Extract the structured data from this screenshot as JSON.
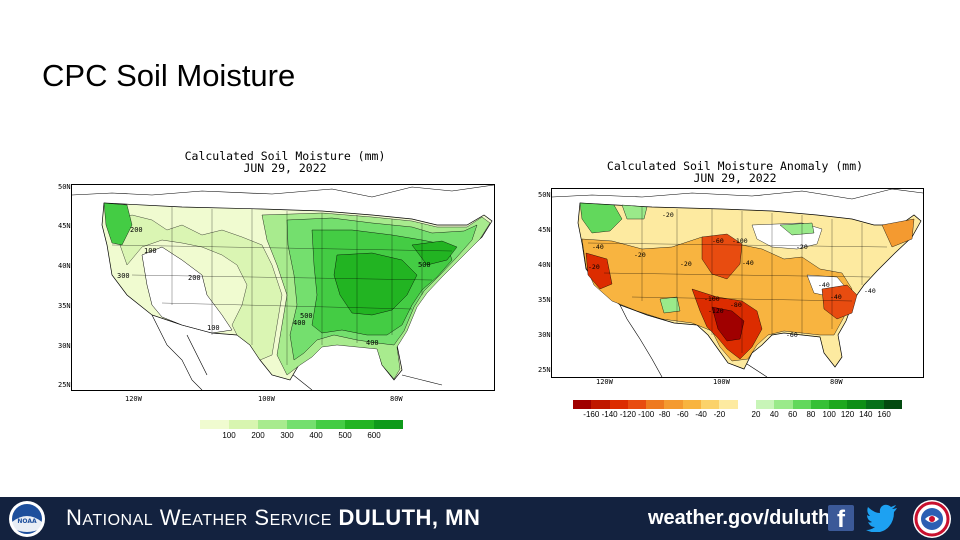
{
  "slide": {
    "title": "CPC Soil Moisture"
  },
  "left_map": {
    "title_line1": "Calculated Soil Moisture (mm)",
    "title_line2": "JUN 29, 2022",
    "lat_labels": [
      "50N",
      "45N",
      "40N",
      "35N",
      "30N",
      "25N"
    ],
    "lon_labels": [
      "120W",
      "100W",
      "80W"
    ],
    "contour_labels": [
      "200",
      "100",
      "300",
      "200",
      "100",
      "500",
      "400",
      "500",
      "400"
    ],
    "legend": {
      "colors": [
        "#f0fbd0",
        "#d8f5b0",
        "#a8eb8e",
        "#74df6e",
        "#44cc44",
        "#22b422",
        "#0e9a1a"
      ],
      "labels": [
        "100",
        "200",
        "300",
        "400",
        "500",
        "600"
      ]
    }
  },
  "right_map": {
    "title_line1": "Calculated Soil Moisture Anomaly (mm)",
    "title_line2": "JUN 29, 2022",
    "lat_labels": [
      "50N",
      "45N",
      "40N",
      "35N",
      "30N",
      "25N"
    ],
    "lon_labels": [
      "120W",
      "100W",
      "80W"
    ],
    "contour_labels": [
      "-20",
      "-40",
      "-20",
      "-60",
      "-100",
      "-40",
      "-20",
      "-100",
      "-80",
      "-120",
      "-40",
      "-20",
      "-40",
      "-60",
      "-20",
      "-40"
    ],
    "legend": {
      "colors": [
        "#a00000",
        "#c01800",
        "#dc2c00",
        "#e84c10",
        "#ee7a20",
        "#f49a30",
        "#f8b440",
        "#fbd26a",
        "#fdeaa0",
        "#ffffff",
        "#c8f5b8",
        "#9aea8a",
        "#62d85c",
        "#36c036",
        "#1ea81e",
        "#0e8e16",
        "#06701a",
        "#034a10"
      ],
      "labels": [
        "-160",
        "-140",
        "-120",
        "-100",
        "-80",
        "-60",
        "-40",
        "-20",
        "20",
        "40",
        "60",
        "80",
        "100",
        "120",
        "140",
        "160"
      ]
    }
  },
  "footer": {
    "org_prefix_N": "N",
    "org_rest_1": "ATIONAL",
    "org_W": "W",
    "org_rest_2": "EATHER",
    "org_S": "S",
    "org_rest_3": "ERVICE",
    "office": "DULUTH, MN",
    "url": "weather.gov/duluth",
    "noaa_text": "NOAA",
    "brand_colors": {
      "bar": "#13223f",
      "facebook": "#3b5998",
      "twitter": "#1da1f2"
    },
    "icons": [
      "noaa-logo",
      "facebook-icon",
      "twitter-icon",
      "nws-logo"
    ]
  }
}
